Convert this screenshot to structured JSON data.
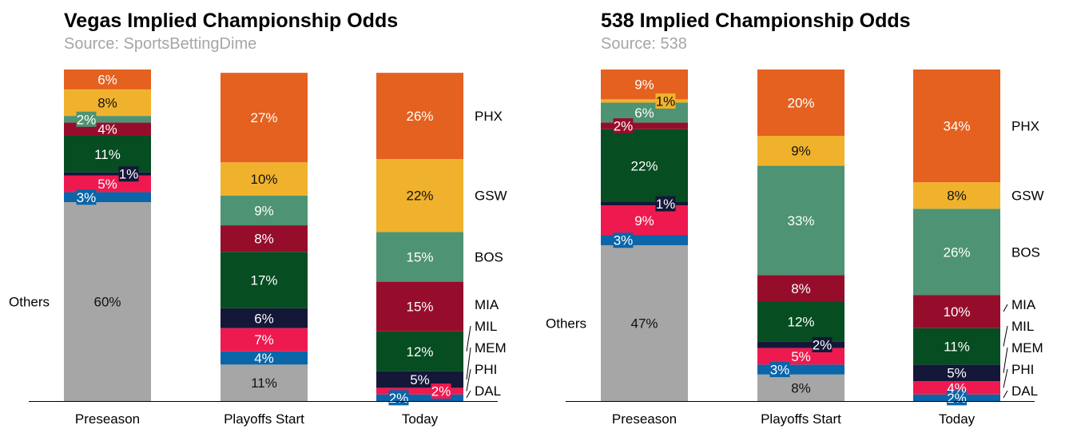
{
  "team_colors": {
    "PHX": "#e4611f",
    "GSW": "#f0b22c",
    "BOS": "#4e9373",
    "MIA": "#960d2c",
    "MIL": "#064d21",
    "MEM": "#141738",
    "PHI": "#ee1a4f",
    "DAL": "#0a65a9",
    "Others": "#a6a6a6"
  },
  "chart_data": [
    {
      "type": "bar",
      "stacked": true,
      "title": "Vegas Implied Championship Odds",
      "subtitle": "Source: SportsBettingDime",
      "categories": [
        "Preseason",
        "Playoffs Start",
        "Today"
      ],
      "others_label": "Others",
      "legend_order": [
        "PHX",
        "GSW",
        "BOS",
        "MIA",
        "MIL",
        "MEM",
        "PHI",
        "DAL"
      ],
      "series": [
        {
          "name": "Others",
          "values": [
            60,
            11,
            0
          ]
        },
        {
          "name": "DAL",
          "values": [
            3,
            4,
            2
          ]
        },
        {
          "name": "PHI",
          "values": [
            5,
            7,
            2
          ]
        },
        {
          "name": "MEM",
          "values": [
            1,
            6,
            5
          ]
        },
        {
          "name": "MIL",
          "values": [
            11,
            17,
            12
          ]
        },
        {
          "name": "MIA",
          "values": [
            4,
            8,
            15
          ]
        },
        {
          "name": "BOS",
          "values": [
            2,
            9,
            15
          ]
        },
        {
          "name": "GSW",
          "values": [
            8,
            10,
            22
          ]
        },
        {
          "name": "PHX",
          "values": [
            6,
            27,
            26
          ]
        }
      ]
    },
    {
      "type": "bar",
      "stacked": true,
      "title": "538 Implied Championship Odds",
      "subtitle": "Source: 538",
      "categories": [
        "Preseason",
        "Playoffs Start",
        "Today"
      ],
      "others_label": "Others",
      "legend_order": [
        "PHX",
        "GSW",
        "BOS",
        "MIA",
        "MIL",
        "MEM",
        "PHI",
        "DAL"
      ],
      "series": [
        {
          "name": "Others",
          "values": [
            47,
            8,
            0
          ]
        },
        {
          "name": "DAL",
          "values": [
            3,
            3,
            2
          ]
        },
        {
          "name": "PHI",
          "values": [
            9,
            5,
            4
          ]
        },
        {
          "name": "MEM",
          "values": [
            1,
            2,
            5
          ]
        },
        {
          "name": "MIL",
          "values": [
            22,
            12,
            11
          ]
        },
        {
          "name": "MIA",
          "values": [
            2,
            8,
            10
          ]
        },
        {
          "name": "BOS",
          "values": [
            6,
            33,
            26
          ]
        },
        {
          "name": "GSW",
          "values": [
            1,
            9,
            8
          ]
        },
        {
          "name": "PHX",
          "values": [
            9,
            20,
            34
          ]
        }
      ]
    }
  ]
}
